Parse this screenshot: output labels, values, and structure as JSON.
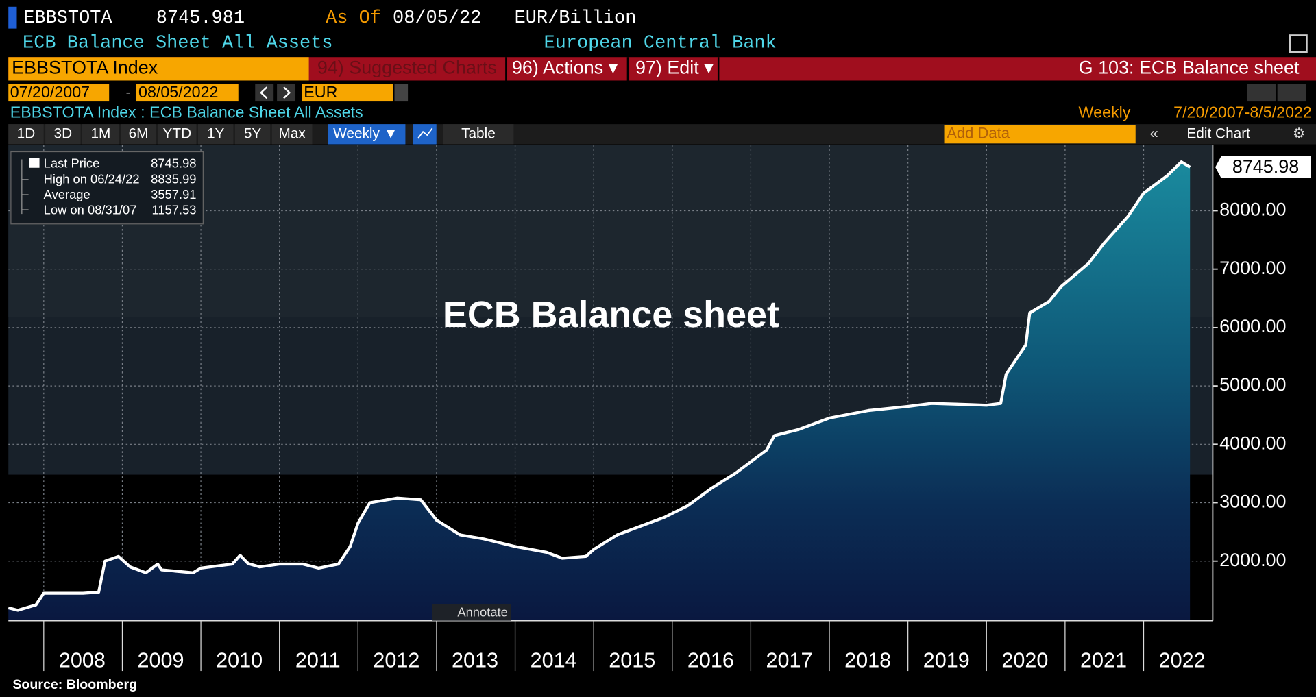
{
  "header": {
    "ticker": "EBBSTOTA",
    "last": 8745.981,
    "as_of_label": "As Of",
    "as_of": "08/05/22",
    "units": "EUR/Billion",
    "description": "ECB Balance Sheet All Assets",
    "source_name": "European Central Bank"
  },
  "command_bar": {
    "security": "EBBSTOTA Index",
    "suggested": "94) Suggested Charts",
    "actions": "96) Actions ▾",
    "edit": "97) Edit ▾",
    "page_title": "G 103: ECB Balance sheet"
  },
  "controls": {
    "start_date": "07/20/2007",
    "end_date": "08/05/2022",
    "currency": "EUR",
    "chart_label": "EBBSTOTA Index : ECB Balance Sheet All Assets",
    "frequency": "Weekly",
    "range": "7/20/2007-8/5/2022",
    "periods": [
      "1D",
      "3D",
      "1M",
      "6M",
      "YTD",
      "1Y",
      "5Y",
      "Max"
    ],
    "frequency_button": "Weekly ▼",
    "table": "Table",
    "add_data": "Add Data",
    "edit_chart": "Edit Chart"
  },
  "legend": {
    "items": [
      {
        "label": "Last Price",
        "value": 8745.98
      },
      {
        "label": "High on 06/24/22",
        "value": 8835.99
      },
      {
        "label": "Average",
        "value": 3557.91
      },
      {
        "label": "Low on 08/31/07",
        "value": 1157.53
      }
    ]
  },
  "price_tag": "8745.98",
  "annotate": "Annotate",
  "source": "Source: Bloomberg",
  "chart_data": {
    "type": "area",
    "title": "ECB Balance sheet",
    "color": "#ffffff",
    "grid": true,
    "xlim": [
      2007.55,
      2022.88
    ],
    "xticks": [
      2008,
      2009,
      2010,
      2011,
      2012,
      2013,
      2014,
      2015,
      2016,
      2017,
      2018,
      2019,
      2020,
      2021,
      2022
    ],
    "ylim": [
      980,
      8980
    ],
    "yticks": [
      {
        "value": 2000,
        "label": "2000.00"
      },
      {
        "value": 3000,
        "label": "3000.00"
      },
      {
        "value": 4000,
        "label": "4000.00"
      },
      {
        "value": 5000,
        "label": "5000.00"
      },
      {
        "value": 6000,
        "label": "6000.00"
      },
      {
        "value": 7000,
        "label": "7000.00"
      },
      {
        "value": 8000,
        "label": "8000.00"
      }
    ],
    "x": [
      2007.55,
      2007.67,
      2007.9,
      2008.0,
      2008.5,
      2008.7,
      2008.78,
      2008.95,
      2009.1,
      2009.3,
      2009.45,
      2009.5,
      2009.9,
      2010.0,
      2010.4,
      2010.5,
      2010.6,
      2010.75,
      2011.0,
      2011.3,
      2011.5,
      2011.75,
      2011.9,
      2012.0,
      2012.15,
      2012.5,
      2012.8,
      2013.0,
      2013.3,
      2013.6,
      2014.0,
      2014.4,
      2014.6,
      2014.9,
      2015.0,
      2015.3,
      2015.6,
      2015.9,
      2016.2,
      2016.5,
      2016.8,
      2017.0,
      2017.2,
      2017.3,
      2017.6,
      2018.0,
      2018.5,
      2019.0,
      2019.3,
      2019.8,
      2020.0,
      2020.18,
      2020.25,
      2020.5,
      2020.55,
      2020.8,
      2020.95,
      2021.3,
      2021.5,
      2021.8,
      2022.0,
      2022.3,
      2022.48,
      2022.59
    ],
    "series": [
      {
        "name": "Last Price",
        "color": "#ffffff",
        "values": [
          1200,
          1157.53,
          1250,
          1450,
          1450,
          1470,
          2000,
          2080,
          1900,
          1800,
          1950,
          1850,
          1800,
          1880,
          1950,
          2100,
          1960,
          1900,
          1950,
          1950,
          1880,
          1950,
          2250,
          2650,
          3000,
          3080,
          3050,
          2700,
          2450,
          2380,
          2250,
          2150,
          2050,
          2080,
          2200,
          2450,
          2600,
          2750,
          2950,
          3250,
          3500,
          3700,
          3900,
          4150,
          4250,
          4450,
          4580,
          4650,
          4700,
          4680,
          4670,
          4700,
          5200,
          5700,
          6250,
          6450,
          6700,
          7100,
          7450,
          7900,
          8300,
          8600,
          8835.99,
          8745.981
        ]
      }
    ]
  }
}
